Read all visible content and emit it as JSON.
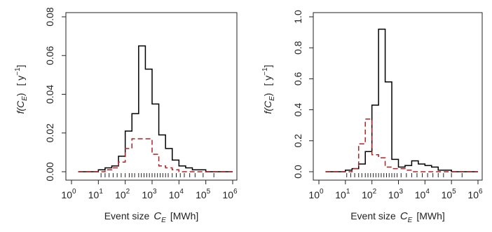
{
  "chart_data": [
    {
      "type": "step-histogram",
      "xlabel_text": "Event size",
      "xlabel_var": "C",
      "xlabel_sub": "E",
      "xlabel_unit": "[MWh]",
      "ylabel_func": "f(",
      "ylabel_var": "C",
      "ylabel_sub": "E",
      "ylabel_close": ")",
      "ylabel_unit_open": "[ y",
      "ylabel_unit_exp": "−1",
      "ylabel_unit_close": "]",
      "x_scale": "log10",
      "xlim": [
        0,
        6
      ],
      "ylim": [
        0,
        0.08
      ],
      "x_ticks": [
        0,
        1,
        2,
        3,
        4,
        5,
        6
      ],
      "x_tick_labels": [
        "10",
        "10",
        "10",
        "10",
        "10",
        "10",
        "10"
      ],
      "x_tick_exponents": [
        "0",
        "1",
        "2",
        "3",
        "4",
        "5",
        "6"
      ],
      "y_ticks": [
        0,
        0.02,
        0.04,
        0.06,
        0.08
      ],
      "y_tick_labels": [
        "0.00",
        "0.02",
        "0.04",
        "0.06",
        "0.08"
      ],
      "bin_edges": [
        0.25,
        1.0,
        1.25,
        1.5,
        1.75,
        2.0,
        2.25,
        2.5,
        2.75,
        3.0,
        3.25,
        3.5,
        3.75,
        4.0,
        4.25,
        4.5,
        5.0,
        6.0
      ],
      "series": [
        {
          "color": "#000000",
          "dash": "solid",
          "values": [
            0.0,
            0.001,
            0.002,
            0.003,
            0.008,
            0.021,
            0.03,
            0.065,
            0.053,
            0.035,
            0.019,
            0.012,
            0.006,
            0.003,
            0.002,
            0.001,
            0.0
          ]
        },
        {
          "color": "#b22222",
          "dash": "dashed",
          "values": [
            0.0,
            0.0,
            0.001,
            0.002,
            0.005,
            0.012,
            0.017,
            0.017,
            0.017,
            0.009,
            0.003,
            0.002,
            0.001,
            0.0,
            0.0,
            0.0,
            0.0
          ]
        }
      ],
      "rug": [
        1.1,
        1.25,
        1.4,
        1.55,
        1.7,
        1.85,
        2.0,
        2.15,
        2.25,
        2.35,
        2.5,
        2.6,
        2.7,
        2.8,
        2.9,
        3.0,
        3.1,
        3.2,
        3.3,
        3.4,
        3.5,
        3.6,
        3.75,
        3.9,
        4.05,
        4.2,
        4.4,
        4.6,
        4.9,
        5.3
      ]
    },
    {
      "type": "step-histogram",
      "xlabel_text": "Event size",
      "xlabel_var": "C",
      "xlabel_sub": "E",
      "xlabel_unit": "[MWh]",
      "ylabel_func": "f(",
      "ylabel_var": "C",
      "ylabel_sub": "E",
      "ylabel_close": ")",
      "ylabel_unit_open": "[ y",
      "ylabel_unit_exp": "−1",
      "ylabel_unit_close": "]",
      "x_scale": "log10",
      "xlim": [
        0,
        6
      ],
      "ylim": [
        0,
        1.0
      ],
      "x_ticks": [
        0,
        1,
        2,
        3,
        4,
        5,
        6
      ],
      "x_tick_labels": [
        "10",
        "10",
        "10",
        "10",
        "10",
        "10",
        "10"
      ],
      "x_tick_exponents": [
        "0",
        "1",
        "2",
        "3",
        "4",
        "5",
        "6"
      ],
      "y_ticks": [
        0,
        0.2,
        0.4,
        0.6,
        0.8,
        1.0
      ],
      "y_tick_labels": [
        "0.0",
        "0.2",
        "0.4",
        "0.6",
        "0.8",
        "1.0"
      ],
      "bin_edges": [
        0.25,
        1.0,
        1.25,
        1.5,
        1.75,
        2.0,
        2.25,
        2.5,
        2.75,
        3.0,
        3.25,
        3.5,
        3.75,
        4.0,
        4.25,
        4.5,
        5.0,
        6.0
      ],
      "series": [
        {
          "color": "#000000",
          "dash": "solid",
          "values": [
            0.0,
            0.01,
            0.02,
            0.05,
            0.13,
            0.43,
            0.92,
            0.58,
            0.08,
            0.03,
            0.04,
            0.07,
            0.05,
            0.04,
            0.03,
            0.01,
            0.0
          ]
        },
        {
          "color": "#b22222",
          "dash": "dashed",
          "values": [
            0.0,
            0.0,
            0.02,
            0.18,
            0.34,
            0.11,
            0.09,
            0.03,
            0.02,
            0.02,
            0.01,
            0.0,
            0.0,
            0.0,
            0.0,
            0.0,
            0.0
          ]
        }
      ],
      "rug": [
        1.05,
        1.2,
        1.35,
        1.5,
        1.62,
        1.75,
        1.85,
        1.95,
        2.05,
        2.15,
        2.25,
        2.35,
        2.45,
        2.55,
        2.65,
        2.75,
        2.85,
        2.95,
        3.1,
        3.3,
        3.5,
        3.7,
        3.9,
        4.1,
        4.3,
        4.5,
        4.7,
        5.0,
        5.4
      ]
    }
  ]
}
